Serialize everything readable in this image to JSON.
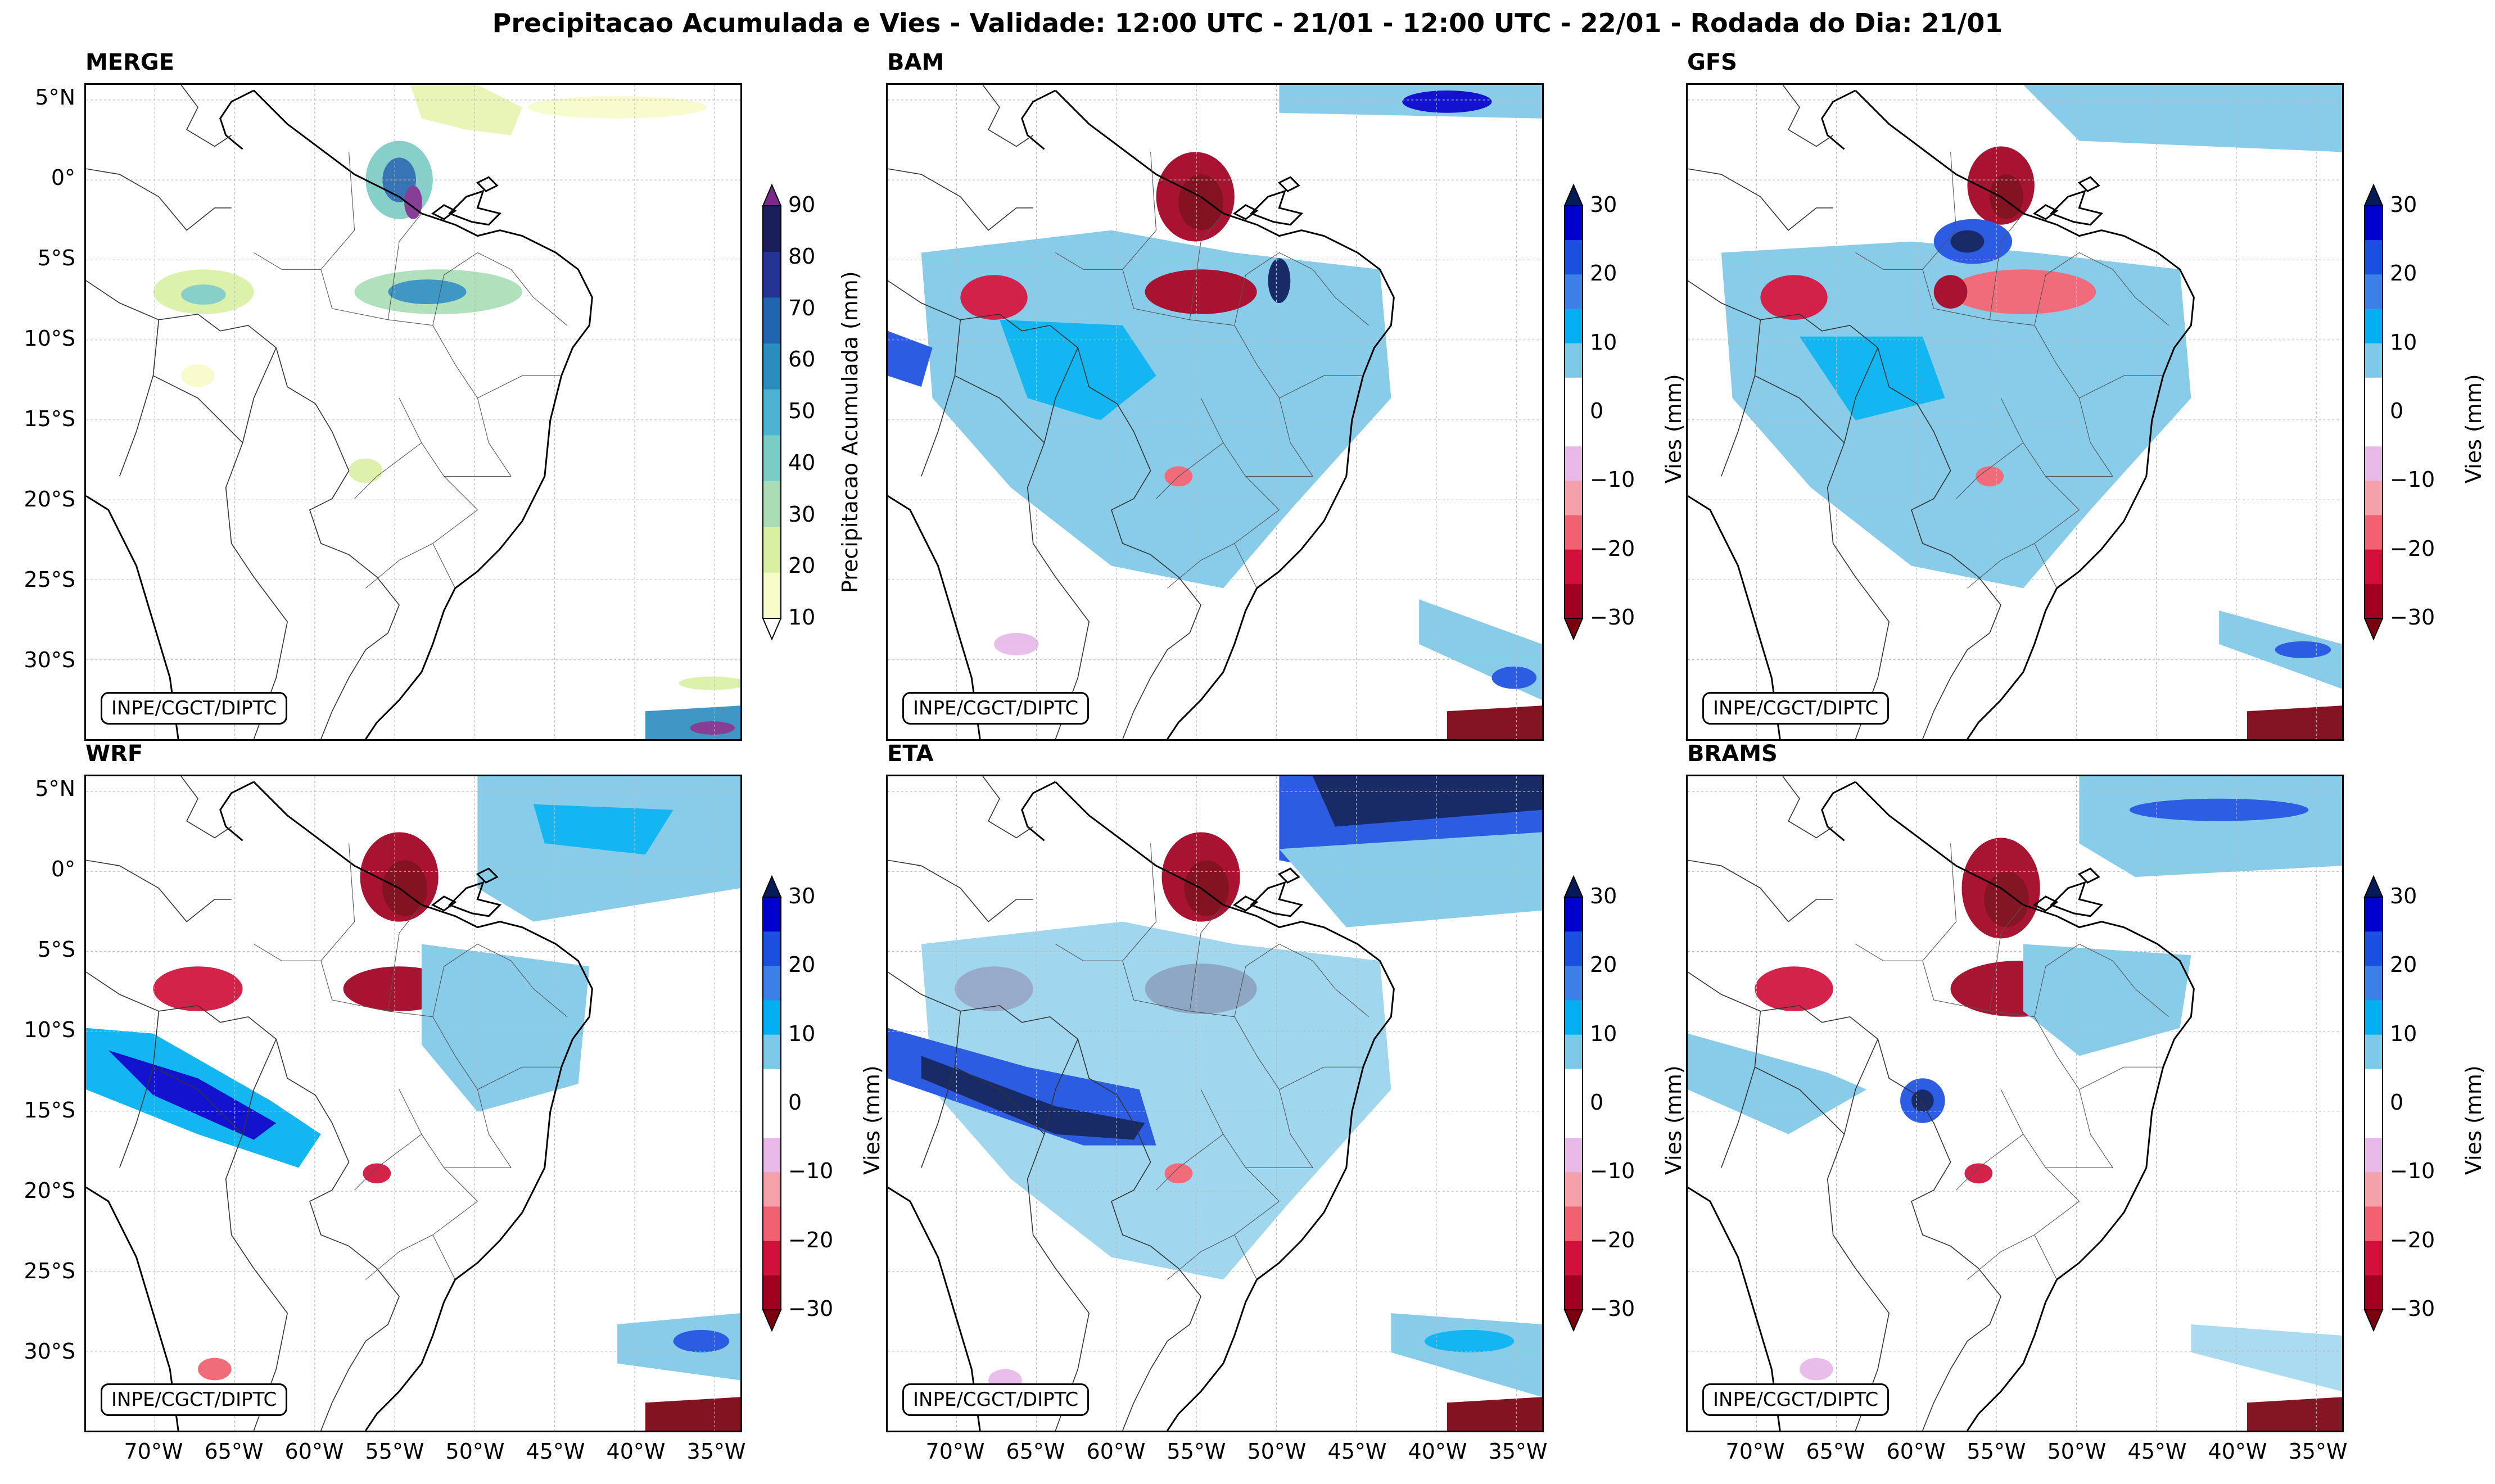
{
  "title": "Precipitacao Acumulada e Vies - Validade: 12:00 UTC - 21/01 - 12:00 UTC - 22/01 - Rodada do Dia: 21/01",
  "credit": "INPE/CGCT/DIPTC",
  "panels": [
    {
      "label": "MERGE",
      "kind": "precip"
    },
    {
      "label": "BAM",
      "kind": "bias"
    },
    {
      "label": "GFS",
      "kind": "bias"
    },
    {
      "label": "WRF",
      "kind": "bias"
    },
    {
      "label": "ETA",
      "kind": "bias"
    },
    {
      "label": "BRAMS",
      "kind": "bias"
    }
  ],
  "lat_ticks": [
    "5°N",
    "0°",
    "5°S",
    "10°S",
    "15°S",
    "20°S",
    "25°S",
    "30°S"
  ],
  "lon_ticks": [
    "70°W",
    "65°W",
    "60°W",
    "55°W",
    "50°W",
    "45°W",
    "40°W",
    "35°W"
  ],
  "precip_colorbar": {
    "label": "Precipitacao Acumulada (mm)",
    "ticks": [
      "10",
      "20",
      "30",
      "40",
      "50",
      "60",
      "70",
      "80",
      "90"
    ],
    "colors": [
      "#f7fcc8",
      "#d9f0a3",
      "#a8ddb5",
      "#7bccc4",
      "#4eb3d3",
      "#2b8cbe",
      "#2166ac",
      "#253494",
      "#1a1f5c"
    ],
    "over": "#7b2a8a"
  },
  "bias_colorbar": {
    "label": "Vies (mm)",
    "ticks": [
      "30",
      "20",
      "10",
      "0",
      "−10",
      "−20",
      "−30"
    ],
    "colors": [
      "#0000cc",
      "#1a4fe0",
      "#3d7fe8",
      "#00b0f0",
      "#7ec8e8",
      "#ffffff",
      "#ffffff",
      "#e8b8e8",
      "#f4a0a8",
      "#f06070",
      "#d0103a",
      "#a00020"
    ],
    "top": "#061a5a",
    "bottom": "#7a0010"
  }
}
